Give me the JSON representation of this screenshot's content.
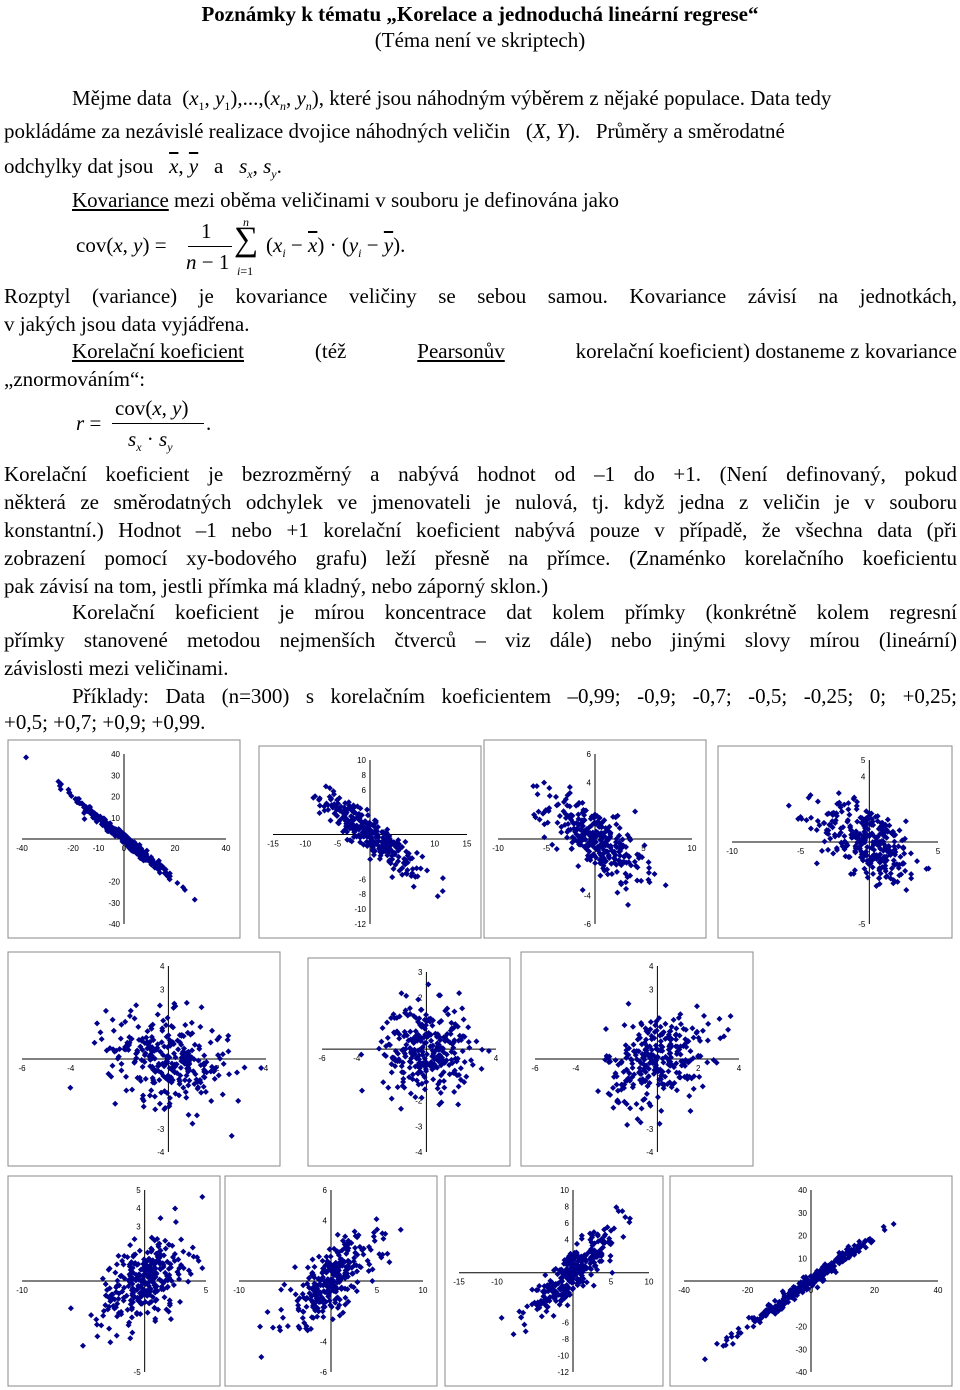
{
  "title": "Poznámky k tématu „Korelace a jednoduchá lineární regrese“",
  "subtitle": "(Téma není ve skriptech)",
  "p1": {
    "l1a": "Mějme data",
    "l1b": "které jsou náhodným výběrem z nějaké populace. Data tedy",
    "l2a": "pokládáme za nezávislé realizace dvojice náhodných veličin",
    "l2b": "Průměry a směrodatné",
    "l3a": "odchylky dat jsou",
    "l3b": "a"
  },
  "p2": {
    "kovariance": "Kovariance",
    "rest": " mezi oběma veličinami v souboru je definována jako"
  },
  "p3": {
    "l1": "Rozptyl (variance) je kovariance veličiny se sebou samou. Kovariance závisí na jednotkách,",
    "l2": "v jakých jsou data vyjádřena."
  },
  "p4": {
    "a": "Korelační koeficient",
    "b": "(též",
    "c": "Pearsonův",
    "d": "korelační koeficient) dostaneme z kovariance",
    "l2": "„znormováním“:"
  },
  "p5": {
    "l1": "Korelační koeficient je bezrozměrný a nabývá hodnot od –1 do +1. (Není definovaný, pokud",
    "l2": "některá ze směrodatných odchylek ve jmenovateli je nulová, tj. když jedna z veličin je v souboru",
    "l3": "konstantní.) Hodnot –1 nebo +1 korelační koeficient nabývá pouze v případě, že všechna data (při",
    "l4": "zobrazení pomocí xy-bodového grafu) leží přesně na přímce. (Znaménko korelačního koeficientu",
    "l5": "pak závisí na tom, jestli přímka má kladný, nebo záporný sklon.)"
  },
  "p6": {
    "l1": "Korelační koeficient je mírou koncentrace dat kolem přímky (konkrétně kolem regresní",
    "l2": "přímky stanovené metodou nejmenších čtverců – viz dále) nebo jinými slovy mírou (lineární)",
    "l3": "závislosti mezi veličinami."
  },
  "p7": {
    "l1": "Příklady: Data (n=300) s korelačním koeficientem –0,99; -0,9; -0,7; -0,5; -0,25; 0; +0,25;",
    "l2": "+0,5; +0,7; +0,9; +0,99."
  },
  "chart_data": [
    {
      "type": "scatter",
      "r": -0.99,
      "n": 300,
      "xlim": [
        -40,
        40
      ],
      "ylim": [
        -40,
        40
      ],
      "xticks": [
        -40,
        -20,
        -10,
        0,
        20,
        40
      ],
      "yticks": [
        40,
        30,
        20,
        10,
        -20,
        -30,
        -40
      ],
      "color": "#00008b"
    },
    {
      "type": "scatter",
      "r": -0.9,
      "n": 300,
      "xlim": [
        -15,
        15
      ],
      "ylim": [
        -12,
        10
      ],
      "xticks": [
        -15,
        -10,
        -5,
        10,
        15
      ],
      "yticks": [
        10,
        8,
        6,
        -6,
        -8,
        -10,
        -12
      ],
      "color": "#00008b"
    },
    {
      "type": "scatter",
      "r": -0.7,
      "n": 300,
      "xlim": [
        -10,
        10
      ],
      "ylim": [
        -6,
        6
      ],
      "xticks": [
        -10,
        -5,
        5,
        10
      ],
      "yticks": [
        6,
        4,
        -4,
        -6
      ],
      "color": "#00008b"
    },
    {
      "type": "scatter",
      "r": -0.5,
      "n": 300,
      "xlim": [
        -10,
        5
      ],
      "ylim": [
        -5,
        5
      ],
      "xticks": [
        -10,
        -5,
        5
      ],
      "yticks": [
        5,
        4,
        -5
      ],
      "color": "#00008b"
    },
    {
      "type": "scatter",
      "r": -0.25,
      "n": 300,
      "xlim": [
        -6,
        4
      ],
      "ylim": [
        -4,
        4
      ],
      "xticks": [
        -6,
        -4,
        2,
        4
      ],
      "yticks": [
        4,
        3,
        -3,
        -4
      ],
      "color": "#00008b"
    },
    {
      "type": "scatter",
      "r": 0,
      "n": 300,
      "xlim": [
        -6,
        4
      ],
      "ylim": [
        -4,
        3
      ],
      "xticks": [
        -6,
        -4,
        4
      ],
      "yticks": [
        3,
        2,
        -2,
        -3,
        -4
      ],
      "color": "#00008b"
    },
    {
      "type": "scatter",
      "r": 0.25,
      "n": 300,
      "xlim": [
        -6,
        4
      ],
      "ylim": [
        -4,
        4
      ],
      "xticks": [
        -6,
        -4,
        2,
        4
      ],
      "yticks": [
        4,
        3,
        -3,
        -4
      ],
      "color": "#00008b"
    },
    {
      "type": "scatter",
      "r": 0.5,
      "n": 300,
      "xlim": [
        -10,
        5
      ],
      "ylim": [
        -5,
        5
      ],
      "xticks": [
        -10,
        5
      ],
      "yticks": [
        5,
        4,
        3,
        -5
      ],
      "color": "#00008b"
    },
    {
      "type": "scatter",
      "r": 0.7,
      "n": 300,
      "xlim": [
        -10,
        10
      ],
      "ylim": [
        -6,
        6
      ],
      "xticks": [
        -10,
        5,
        10
      ],
      "yticks": [
        6,
        4,
        -4,
        -6
      ],
      "color": "#00008b"
    },
    {
      "type": "scatter",
      "r": 0.9,
      "n": 300,
      "xlim": [
        -15,
        10
      ],
      "ylim": [
        -12,
        10
      ],
      "xticks": [
        -15,
        -10,
        5,
        10
      ],
      "yticks": [
        10,
        8,
        6,
        4,
        -6,
        -8,
        -10,
        -12
      ],
      "color": "#00008b"
    },
    {
      "type": "scatter",
      "r": 0.99,
      "n": 300,
      "xlim": [
        -40,
        40
      ],
      "ylim": [
        -40,
        40
      ],
      "xticks": [
        -40,
        -20,
        0,
        20,
        40
      ],
      "yticks": [
        40,
        30,
        20,
        10,
        -20,
        -30,
        -40
      ],
      "color": "#00008b"
    }
  ]
}
